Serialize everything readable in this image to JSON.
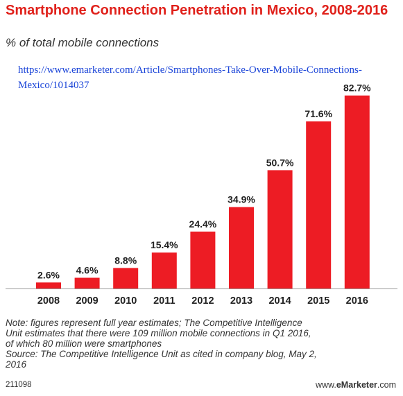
{
  "chart_data": {
    "type": "bar",
    "title": "Smartphone Connection Penetration in Mexico, 2008-2016",
    "subtitle": "% of total mobile connections",
    "categories": [
      "2008",
      "2009",
      "2010",
      "2011",
      "2012",
      "2013",
      "2014",
      "2015",
      "2016"
    ],
    "values": [
      2.6,
      4.6,
      8.8,
      15.4,
      24.4,
      34.9,
      50.7,
      71.6,
      82.7
    ],
    "value_labels": [
      "2.6%",
      "4.6%",
      "8.8%",
      "15.4%",
      "24.4%",
      "34.9%",
      "50.7%",
      "71.6%",
      "82.7%"
    ],
    "ylim": [
      0,
      85
    ],
    "grid": false,
    "xlabel": "",
    "ylabel": "",
    "bar_color": "#ed1c24"
  },
  "url_text": "https://www.emarketer.com/Article/Smartphones-Take-Over-Mobile-Connections-Mexico/1014037",
  "note": {
    "line1": "Note: figures represent full year estimates; The Competitive Intelligence",
    "line2": "Unit estimates that there were 109 million mobile connections in Q1 2016,",
    "line3": "of which 80 million were smartphones",
    "line4": "Source: The Competitive Intelligence Unit as cited in company blog, May 2,",
    "line5": "2016"
  },
  "footer": {
    "id": "211098",
    "brand_prefix": "www.",
    "brand_bold": "eMarketer",
    "brand_suffix": ".com"
  },
  "colors": {
    "title": "#e0211b",
    "link": "#1a44d8",
    "text": "#333333"
  }
}
